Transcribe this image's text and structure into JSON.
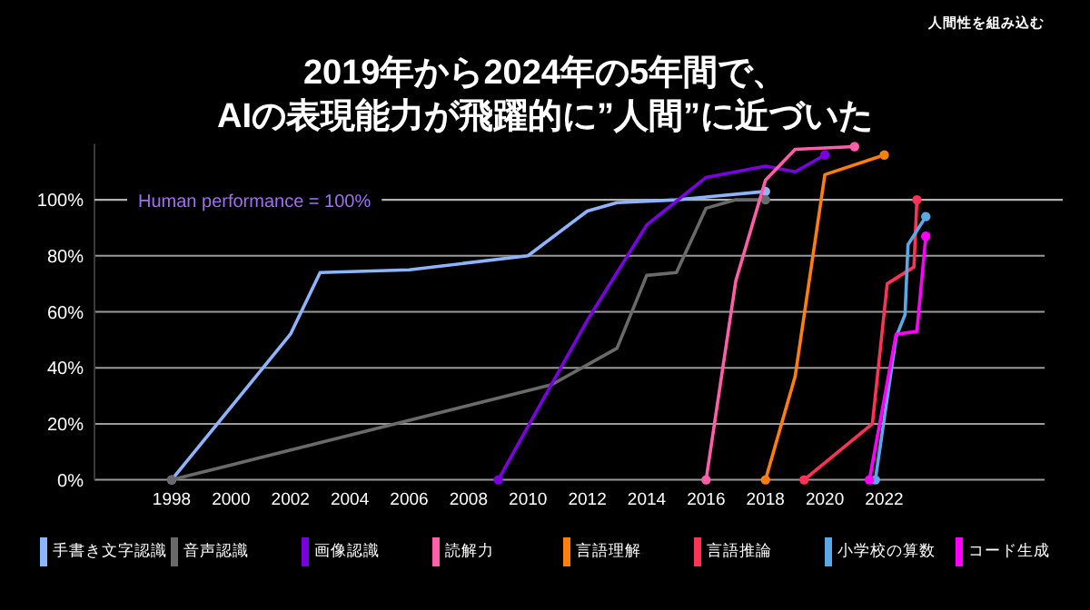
{
  "chart_data": {
    "type": "line",
    "title": "2019年から2024年の5年間で、\nAIの表現能力が飛躍的に”人間”に近づいた",
    "annotations": [
      "人間性を組み込む"
    ],
    "xlim": [
      1995.4,
      2027.4
    ],
    "xticks": [
      1998,
      2000,
      2002,
      2004,
      2006,
      2008,
      2010,
      2012,
      2014,
      2016,
      2018,
      2020,
      2022
    ],
    "ylim": [
      0,
      120
    ],
    "yticks": [
      {
        "value": 0,
        "label": "0%"
      },
      {
        "value": 20,
        "label": "20%"
      },
      {
        "value": 40,
        "label": "40%"
      },
      {
        "value": 60,
        "label": "60%"
      },
      {
        "value": 80,
        "label": "80%"
      },
      {
        "value": 100,
        "label": "100%"
      }
    ],
    "grid": "y",
    "legend": "bottom",
    "line_style": "solid",
    "ref_lines": [
      {
        "axis": "y",
        "value": 100,
        "label": "Human performance = 100%",
        "color": "#b0b0b0"
      }
    ],
    "series": [
      {
        "name": "手書き文字認識",
        "color": "#8fb4ff",
        "x": [
          1998,
          2002,
          2003,
          2006,
          2010,
          2012,
          2013,
          2015,
          2018
        ],
        "values": [
          0,
          52,
          74,
          75,
          80,
          96,
          99,
          100,
          103
        ]
      },
      {
        "name": "音声認識",
        "color": "#6a6a6a",
        "x": [
          1998,
          2010.8,
          2013,
          2014,
          2015,
          2016,
          2017,
          2018
        ],
        "values": [
          0,
          34,
          47,
          73,
          74,
          97,
          100,
          100
        ]
      },
      {
        "name": "画像認識",
        "color": "#7b00e0",
        "x": [
          2009,
          2010,
          2012,
          2014,
          2016,
          2018,
          2019,
          2020
        ],
        "values": [
          0,
          19,
          57,
          91,
          108,
          112,
          110,
          116
        ]
      },
      {
        "name": "読解力",
        "color": "#ff5fa8",
        "x": [
          2016,
          2017,
          2018,
          2019,
          2021
        ],
        "values": [
          0,
          71,
          107,
          118,
          119
        ]
      },
      {
        "name": "言語理解",
        "color": "#ff7f0e",
        "x": [
          2018,
          2019,
          2020,
          2022
        ],
        "values": [
          0,
          37,
          109,
          116
        ]
      },
      {
        "name": "言語推論",
        "color": "#ff3355",
        "x": [
          2019.3,
          2021.6,
          2022.1,
          2023,
          2023.1
        ],
        "values": [
          0,
          20,
          70,
          76,
          100
        ]
      },
      {
        "name": "小学校の算数",
        "color": "#5aa9e6",
        "x": [
          2021.7,
          2022.4,
          2022.7,
          2022.8,
          2023.4
        ],
        "values": [
          0,
          51,
          59,
          84,
          94
        ]
      },
      {
        "name": "コード生成",
        "color": "#ff00ff",
        "x": [
          2021.5,
          2022.4,
          2023.1,
          2023.4
        ],
        "values": [
          0,
          52,
          53,
          87
        ]
      }
    ]
  }
}
